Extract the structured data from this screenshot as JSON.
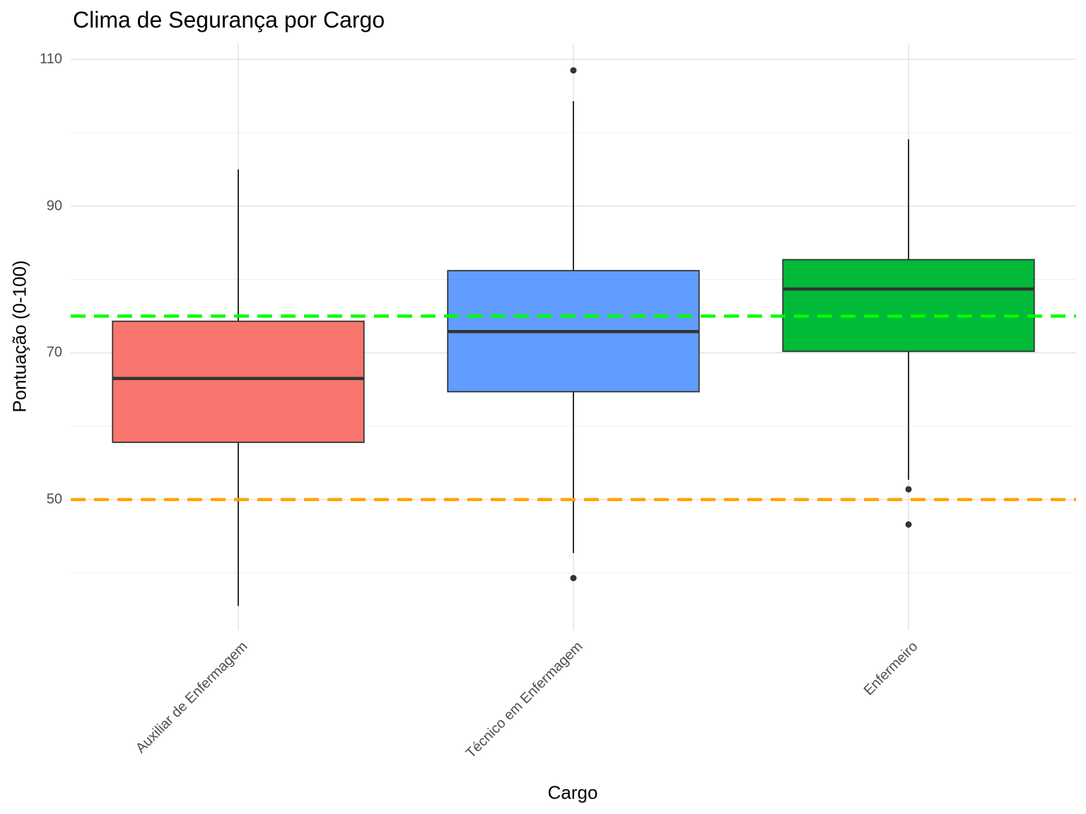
{
  "chart_data": {
    "type": "box",
    "title": "Clima de Segurança por Cargo",
    "xlabel": "Cargo",
    "ylabel": "Pontuação (0-100)",
    "ylim": [
      32.5,
      112
    ],
    "y_ticks": [
      50,
      70,
      90,
      110
    ],
    "y_minor_ticks": [
      40,
      60,
      80,
      100
    ],
    "grid": true,
    "legend": "none",
    "categories": [
      "Auxiliar de Enfermagem",
      "Técnico em Enfermagem",
      "Enfermeiro"
    ],
    "series": [
      {
        "category": "Auxiliar de Enfermagem",
        "color": "#F8766D",
        "whisker_low": 35.5,
        "q1": 57.8,
        "median": 66.5,
        "q3": 74.3,
        "whisker_high": 95,
        "outliers": []
      },
      {
        "category": "Técnico em Enfermagem",
        "color": "#619CFF",
        "whisker_low": 42.7,
        "q1": 64.7,
        "median": 72.9,
        "q3": 81.2,
        "whisker_high": 104.3,
        "outliers": [
          39.3,
          108.5
        ]
      },
      {
        "category": "Enfermeiro",
        "color": "#00BA38",
        "whisker_low": 52.7,
        "q1": 70.2,
        "median": 78.7,
        "q3": 82.7,
        "whisker_high": 99.1,
        "outliers": [
          51.4,
          46.6
        ]
      }
    ],
    "reference_lines": [
      {
        "y": 75,
        "color": "#00FF00",
        "style": "dashed"
      },
      {
        "y": 50,
        "color": "#FFA500",
        "style": "dashed"
      }
    ]
  }
}
